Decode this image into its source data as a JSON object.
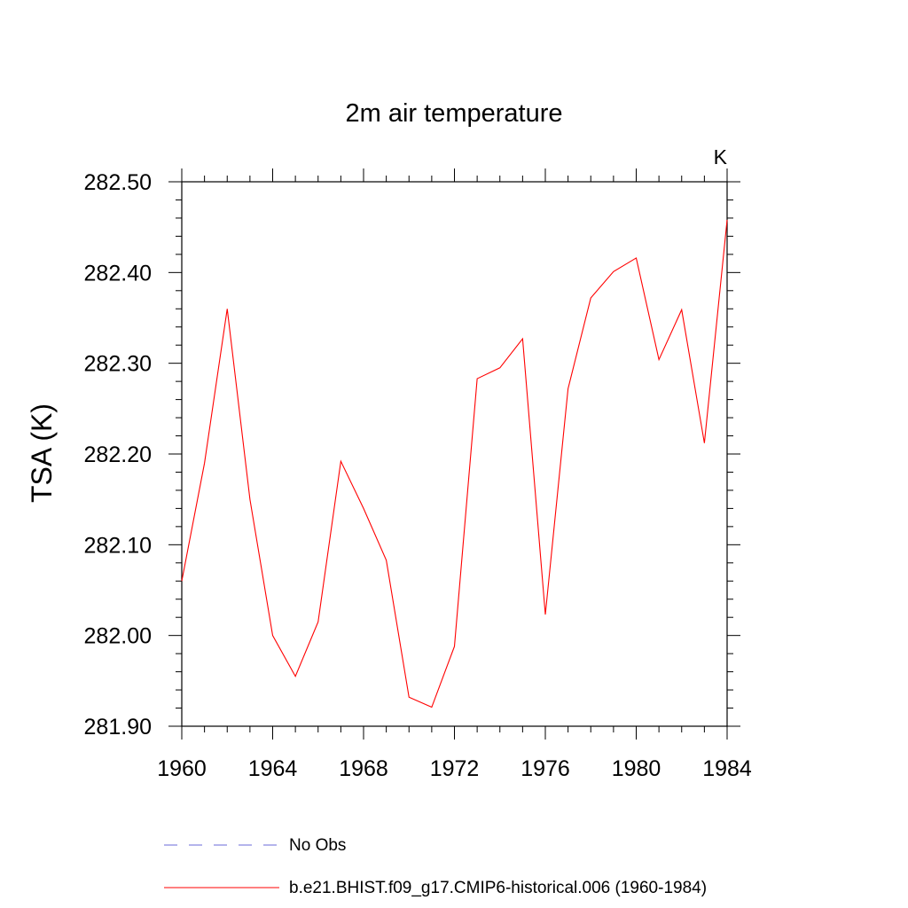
{
  "chart_data": {
    "type": "line",
    "title": "2m air temperature",
    "units_label": "K",
    "ylabel": "TSA  (K)",
    "xlabel": "",
    "xlim": [
      1960,
      1984
    ],
    "ylim": [
      281.9,
      282.5
    ],
    "x_ticks": [
      1960,
      1964,
      1968,
      1972,
      1976,
      1980,
      1984
    ],
    "x_minor_step": 1,
    "y_ticks": [
      281.9,
      282.0,
      282.1,
      282.2,
      282.3,
      282.4,
      282.5
    ],
    "y_tick_labels": [
      "281.90",
      "282.00",
      "282.10",
      "282.20",
      "282.30",
      "282.40",
      "282.50"
    ],
    "y_minor_step": 0.02,
    "grid": false,
    "series": [
      {
        "name": "b.e21.BHIST.f09_g17.CMIP6-historical.006 (1960-1984)",
        "color": "#ff0000",
        "dash": "solid",
        "x": [
          1960,
          1961,
          1962,
          1963,
          1964,
          1965,
          1966,
          1967,
          1968,
          1969,
          1970,
          1971,
          1972,
          1973,
          1974,
          1975,
          1976,
          1977,
          1978,
          1979,
          1980,
          1981,
          1982,
          1983,
          1984
        ],
        "values": [
          282.06,
          282.19,
          282.36,
          282.15,
          282.0,
          281.955,
          282.015,
          282.192,
          282.14,
          282.083,
          281.932,
          281.921,
          281.988,
          282.283,
          282.295,
          282.327,
          282.023,
          282.272,
          282.372,
          282.401,
          282.416,
          282.304,
          282.359,
          282.212,
          282.458
        ]
      }
    ],
    "legend": [
      {
        "label": "No Obs",
        "color": "#6a6ad8",
        "dash": "dashed"
      },
      {
        "label": "b.e21.BHIST.f09_g17.CMIP6-historical.006 (1960-1984)",
        "color": "#ff0000",
        "dash": "solid"
      }
    ]
  }
}
